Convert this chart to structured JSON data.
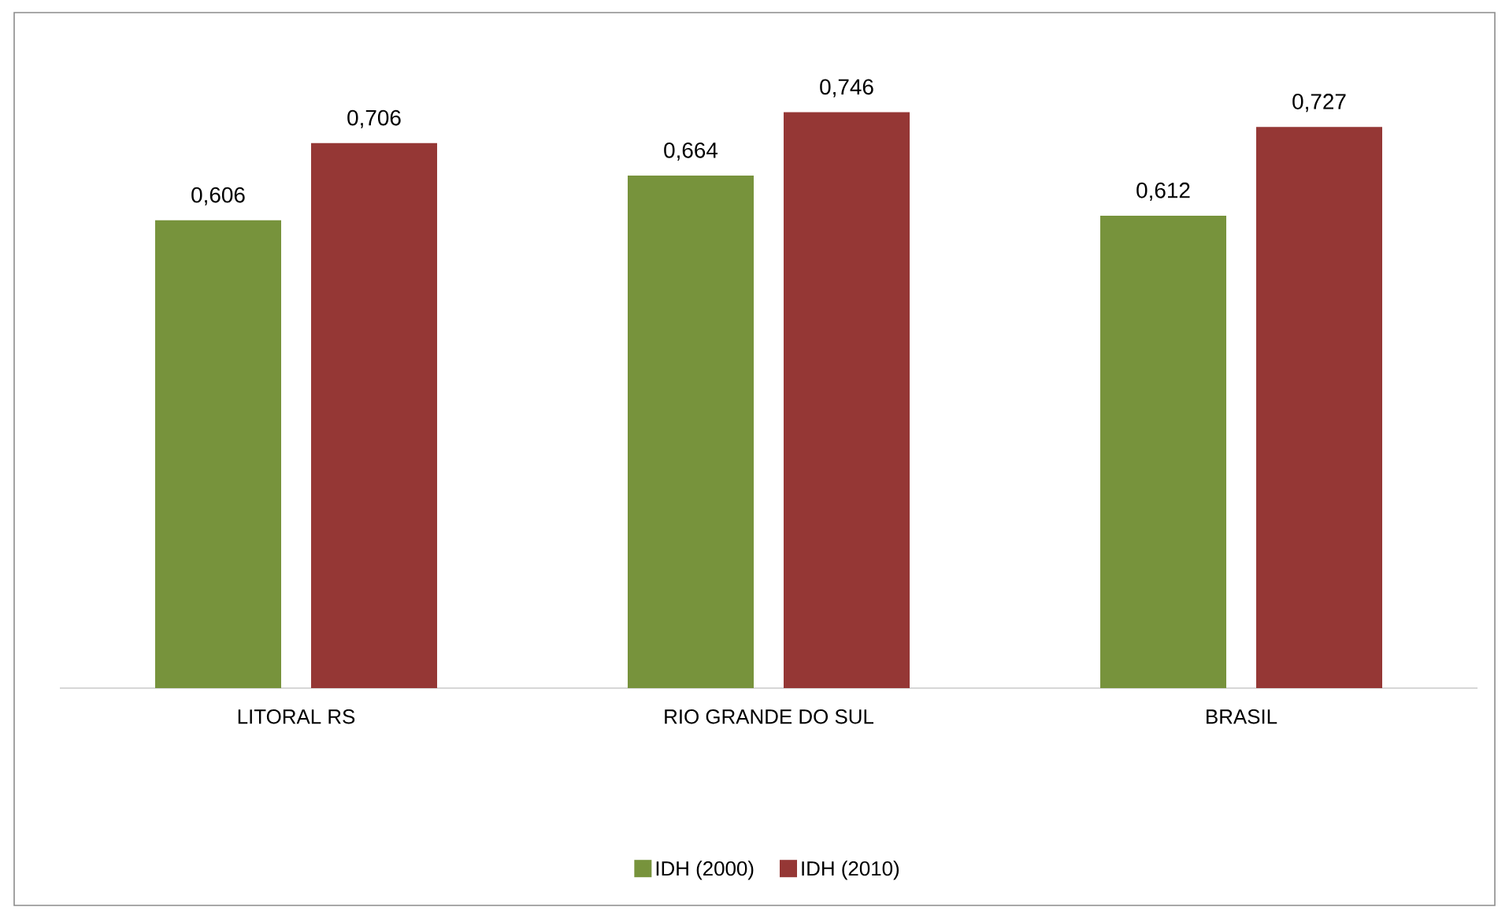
{
  "chart_data": {
    "type": "bar",
    "categories": [
      "LITORAL RS",
      "RIO GRANDE DO SUL",
      "BRASIL"
    ],
    "series": [
      {
        "name": "IDH (2000)",
        "color": "#77933c",
        "values": [
          0.606,
          0.664,
          0.612
        ],
        "value_labels": [
          "0,606",
          "0,664",
          "0,612"
        ]
      },
      {
        "name": "IDH (2010)",
        "color": "#953735",
        "values": [
          0.706,
          0.746,
          0.727
        ],
        "value_labels": [
          "0,706",
          "0,746",
          "0,727"
        ]
      }
    ],
    "legend": "bottom"
  }
}
